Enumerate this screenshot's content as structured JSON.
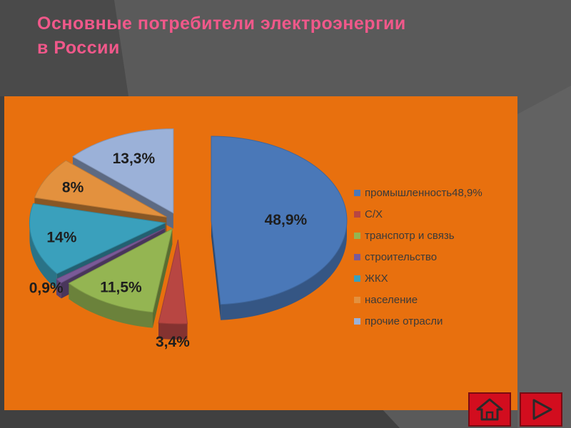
{
  "title_lines": [
    "Основные потребители электроэнергии",
    "в России"
  ],
  "colors": {
    "panel": "#e8700e",
    "title": "#f0588a",
    "nav_button": "#d20d1e"
  },
  "icons": {
    "home": "home-icon",
    "next": "play-right-icon"
  },
  "chart_data": {
    "type": "pie",
    "variant": "3d-exploded",
    "title": "",
    "legend_position": "right",
    "categories": [
      "промышленность48,9%",
      "С/Х",
      "транспотр и связь",
      "строительство",
      "ЖКХ",
      "население",
      "прочие отрасли"
    ],
    "values": [
      48.9,
      3.4,
      11.5,
      0.9,
      14,
      8,
      13.3
    ],
    "data_labels": [
      "48,9%",
      "3,4%",
      "11,5%",
      "0,9%",
      "14%",
      "8%",
      "13,3%"
    ],
    "colors": [
      "#4a78b8",
      "#b84642",
      "#94b552",
      "#7a5a98",
      "#3aa0bc",
      "#e3913e",
      "#9bb1d8"
    ]
  }
}
